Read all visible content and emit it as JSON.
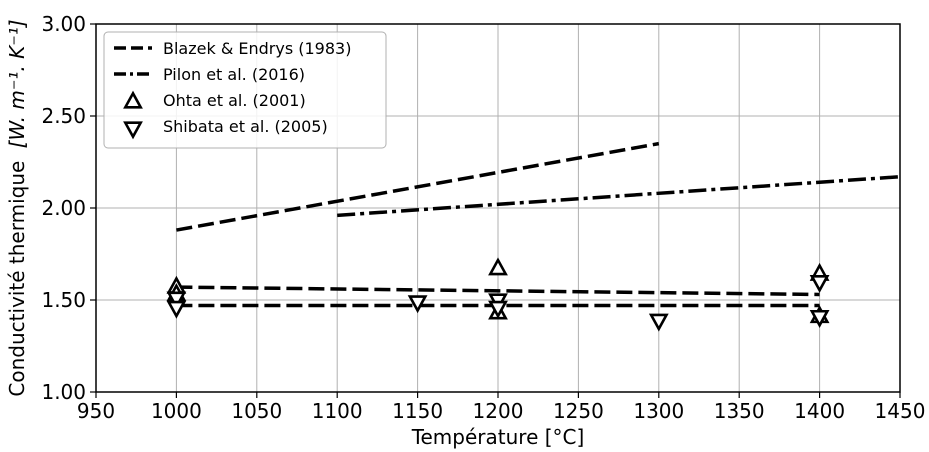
{
  "chart_data": {
    "type": "line",
    "xlabel": "Température [°C]",
    "ylabel": "Conductivité thermique",
    "ylabel_unit": "[W. m⁻¹. K⁻¹]",
    "xlim": [
      950,
      1450
    ],
    "ylim": [
      1.0,
      3.0
    ],
    "xticks": [
      950,
      1000,
      1050,
      1100,
      1150,
      1200,
      1250,
      1300,
      1350,
      1400,
      1450
    ],
    "xtick_labels": [
      "950",
      "1000",
      "1050",
      "1100",
      "1150",
      "1200",
      "1250",
      "1300",
      "1350",
      "1400",
      "1450"
    ],
    "yticks": [
      1.0,
      1.5,
      2.0,
      2.5,
      3.0
    ],
    "ytick_labels": [
      "1.00",
      "1.50",
      "2.00",
      "2.50",
      "3.00"
    ],
    "grid": true,
    "legend_position": "top-left",
    "series": [
      {
        "name": "Blazek & Endrys (1983)",
        "style": "dashed",
        "marker": "none",
        "color": "#000000",
        "lines": [
          {
            "x": [
              1000,
              1300
            ],
            "y": [
              1.88,
              2.35
            ]
          },
          {
            "x": [
              1000,
              1400
            ],
            "y": [
              1.57,
              1.53
            ]
          },
          {
            "x": [
              1000,
              1400
            ],
            "y": [
              1.47,
              1.47
            ]
          }
        ]
      },
      {
        "name": "Pilon et al. (2016)",
        "style": "dashdot",
        "marker": "none",
        "color": "#000000",
        "lines": [
          {
            "x": [
              1100,
              1450
            ],
            "y": [
              1.96,
              2.17
            ]
          }
        ]
      },
      {
        "name": "Ohta et al. (2001)",
        "style": "none",
        "marker": "triangle-up",
        "color": "#000000",
        "points": [
          {
            "x": 1000,
            "y": 1.57
          },
          {
            "x": 1000,
            "y": 1.53
          },
          {
            "x": 1200,
            "y": 1.67
          },
          {
            "x": 1200,
            "y": 1.43
          },
          {
            "x": 1400,
            "y": 1.64
          },
          {
            "x": 1400,
            "y": 1.41
          }
        ]
      },
      {
        "name": "Shibata et al. (2005)",
        "style": "none",
        "marker": "triangle-down",
        "color": "#000000",
        "points": [
          {
            "x": 1000,
            "y": 1.51
          },
          {
            "x": 1000,
            "y": 1.46
          },
          {
            "x": 1150,
            "y": 1.49
          },
          {
            "x": 1200,
            "y": 1.5
          },
          {
            "x": 1200,
            "y": 1.46
          },
          {
            "x": 1300,
            "y": 1.39
          },
          {
            "x": 1400,
            "y": 1.6
          },
          {
            "x": 1400,
            "y": 1.41
          }
        ]
      }
    ]
  }
}
